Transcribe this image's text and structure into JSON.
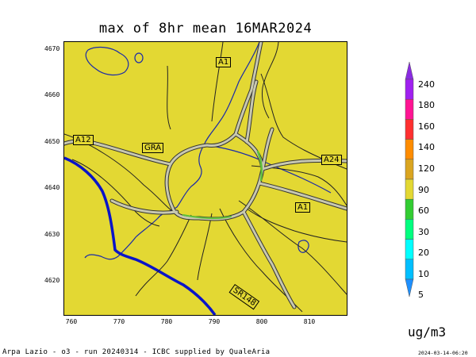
{
  "title": "max of 8hr mean 16MAR2024",
  "map": {
    "fill_color": "#e3d833",
    "y_ticks": [
      "4670",
      "4660",
      "4650",
      "4640",
      "4630",
      "4620"
    ],
    "x_ticks": [
      "760",
      "770",
      "780",
      "790",
      "800",
      "810"
    ],
    "road_labels": {
      "a1_north": "A1",
      "a12": "A12",
      "gra": "GRA",
      "a24": "A24",
      "a1_south": "A1",
      "sr148": "SR148"
    }
  },
  "legend": {
    "labels": [
      "240",
      "180",
      "160",
      "140",
      "120",
      "90",
      "60",
      "30",
      "20",
      "10",
      "5"
    ],
    "colors": [
      "#8a2be2",
      "#a020f0",
      "#ff1493",
      "#ff3030",
      "#ff8c00",
      "#daa520",
      "#e3d833",
      "#32cd32",
      "#00ff7f",
      "#00ffff",
      "#00bfff",
      "#1e90ff"
    ],
    "units": "ug/m3"
  },
  "footer": "Arpa Lazio - o3 - run 20240314 - ICBC supplied by QualeAria",
  "timestamp": "2024-03-14-06:20"
}
